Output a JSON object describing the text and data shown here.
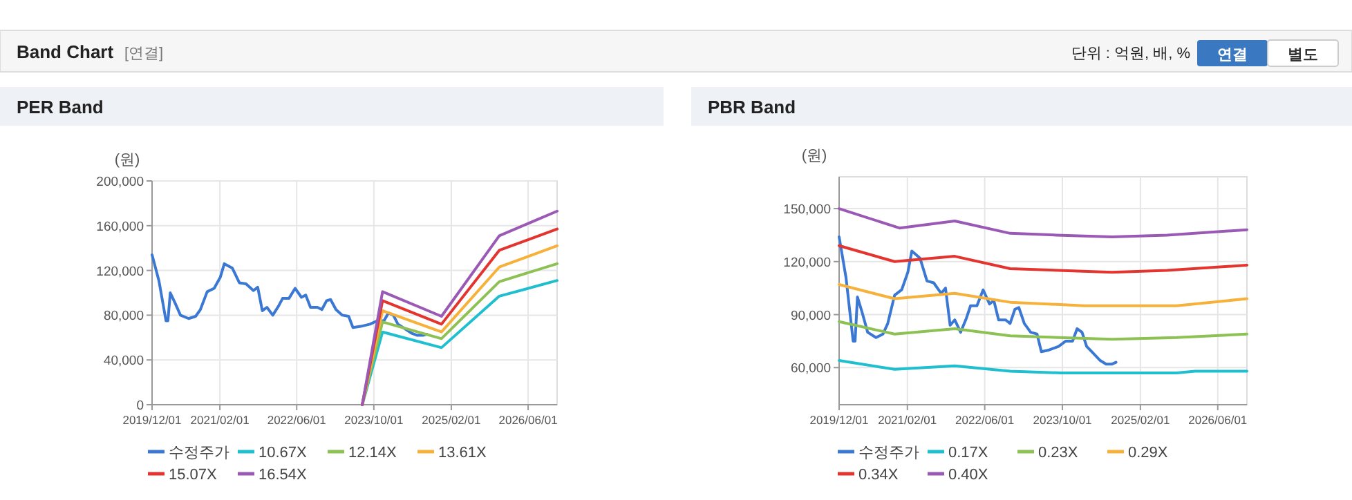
{
  "chart_data": [
    {
      "type": "other",
      "title": "Band Chart",
      "subtitle": "[연결]",
      "annotations": [
        "단위 : 억원, 배, %",
        "연결",
        "별도"
      ]
    },
    {
      "type": "line",
      "title": "PER Band",
      "ylabel": "(원)",
      "xlim": [
        "2019-12-01",
        "2026-12-01"
      ],
      "ylim": [
        0,
        200000
      ],
      "grid": true,
      "legend": "bottom",
      "xticks": [
        {
          "value": "2019-12-01",
          "label": "2019/12/01"
        },
        {
          "value": "2021-02-01",
          "label": "2021/02/01"
        },
        {
          "value": "2022-06-01",
          "label": "2022/06/01"
        },
        {
          "value": "2023-10-01",
          "label": "2023/10/01"
        },
        {
          "value": "2025-02-01",
          "label": "2025/02/01"
        },
        {
          "value": "2026-06-01",
          "label": "2026/06/01"
        }
      ],
      "yticks": [
        {
          "value": 0,
          "label": "0"
        },
        {
          "value": 40000,
          "label": "40,000"
        },
        {
          "value": 80000,
          "label": "80,000"
        },
        {
          "value": 120000,
          "label": "120,000"
        },
        {
          "value": 160000,
          "label": "160,000"
        },
        {
          "value": 200000,
          "label": "200,000"
        }
      ],
      "series": [
        {
          "name": "수정주가",
          "color": "#3a78d4",
          "x": [
            "2019-12-01",
            "2020-01-13",
            "2020-02-27",
            "2020-03-10",
            "2020-03-25",
            "2020-04-24",
            "2020-05-28",
            "2020-07-19",
            "2020-09-01",
            "2020-10-01",
            "2020-11-13",
            "2020-12-27",
            "2021-02-04",
            "2021-03-01",
            "2021-04-21",
            "2021-06-04",
            "2021-07-16",
            "2021-09-01",
            "2021-09-28",
            "2021-10-27",
            "2021-11-25",
            "2022-01-01",
            "2022-02-06",
            "2022-03-04",
            "2022-04-13",
            "2022-05-22",
            "2022-07-01",
            "2022-07-28",
            "2022-08-27",
            "2022-10-10",
            "2022-11-07",
            "2022-12-07",
            "2023-01-01",
            "2023-02-04",
            "2023-03-16",
            "2023-04-25",
            "2023-05-22",
            "2023-07-10",
            "2023-09-07",
            "2023-10-22",
            "2023-12-04",
            "2024-01-01",
            "2024-02-01",
            "2024-03-01",
            "2024-04-13",
            "2024-05-25",
            "2024-07-01",
            "2024-08-07",
            "2024-09-01"
          ],
          "values": [
            134000,
            111000,
            75000,
            75000,
            100000,
            91000,
            80000,
            77000,
            79000,
            85000,
            101000,
            104000,
            114000,
            126000,
            122000,
            109000,
            108000,
            102000,
            105000,
            84000,
            87000,
            80000,
            88000,
            95000,
            95000,
            104000,
            96000,
            98000,
            87000,
            87000,
            85000,
            93000,
            94000,
            85000,
            80000,
            79000,
            69000,
            70000,
            72000,
            75000,
            75000,
            82000,
            80000,
            72000,
            68000,
            64000,
            62000,
            62000,
            63000
          ]
        },
        {
          "name": "10.67X",
          "color": "#1fbfcf",
          "x": [
            "2023-07-20",
            "2023-11-25",
            "2024-12-01",
            "2025-12-01",
            "2026-12-01"
          ],
          "values": [
            0,
            65000,
            51000,
            97000,
            111000
          ]
        },
        {
          "name": "12.14X",
          "color": "#8dc153",
          "x": [
            "2023-07-20",
            "2023-11-25",
            "2024-12-01",
            "2025-12-01",
            "2026-12-01"
          ],
          "values": [
            0,
            74000,
            59000,
            110000,
            126000
          ]
        },
        {
          "name": "13.61X",
          "color": "#f6b13a",
          "x": [
            "2023-07-20",
            "2023-11-25",
            "2024-12-01",
            "2025-12-01",
            "2026-12-01"
          ],
          "values": [
            0,
            84000,
            65000,
            123000,
            142000
          ]
        },
        {
          "name": "15.07X",
          "color": "#e3342f",
          "x": [
            "2023-07-20",
            "2023-11-25",
            "2024-12-01",
            "2025-12-01",
            "2026-12-01"
          ],
          "values": [
            0,
            93000,
            72000,
            138000,
            157000
          ]
        },
        {
          "name": "16.54X",
          "color": "#9b59b6",
          "x": [
            "2023-07-20",
            "2023-11-25",
            "2024-12-01",
            "2025-12-01",
            "2026-12-01"
          ],
          "values": [
            0,
            101000,
            79000,
            151000,
            173000
          ]
        }
      ]
    },
    {
      "type": "line",
      "title": "PBR Band",
      "ylabel": "(원)",
      "xlim": [
        "2019-12-01",
        "2026-12-01"
      ],
      "ylim": [
        39000,
        168000
      ],
      "grid": true,
      "legend": "bottom",
      "xticks": [
        {
          "value": "2019-12-01",
          "label": "2019/12/01"
        },
        {
          "value": "2021-02-01",
          "label": "2021/02/01"
        },
        {
          "value": "2022-06-01",
          "label": "2022/06/01"
        },
        {
          "value": "2023-10-01",
          "label": "2023/10/01"
        },
        {
          "value": "2025-02-01",
          "label": "2025/02/01"
        },
        {
          "value": "2026-06-01",
          "label": "2026/06/01"
        }
      ],
      "yticks": [
        {
          "value": 60000,
          "label": "60,000"
        },
        {
          "value": 90000,
          "label": "90,000"
        },
        {
          "value": 120000,
          "label": "120,000"
        },
        {
          "value": 150000,
          "label": "150,000"
        }
      ],
      "series": [
        {
          "name": "수정주가",
          "color": "#3a78d4",
          "x": [
            "2019-12-01",
            "2020-01-13",
            "2020-02-27",
            "2020-03-10",
            "2020-03-25",
            "2020-04-24",
            "2020-05-28",
            "2020-07-19",
            "2020-09-01",
            "2020-10-01",
            "2020-11-13",
            "2020-12-27",
            "2021-02-04",
            "2021-03-01",
            "2021-04-21",
            "2021-06-04",
            "2021-07-16",
            "2021-09-01",
            "2021-09-28",
            "2021-10-27",
            "2021-11-25",
            "2022-01-01",
            "2022-02-06",
            "2022-03-04",
            "2022-04-13",
            "2022-05-22",
            "2022-07-01",
            "2022-07-28",
            "2022-08-27",
            "2022-10-10",
            "2022-11-07",
            "2022-12-07",
            "2023-01-01",
            "2023-02-04",
            "2023-03-16",
            "2023-04-25",
            "2023-05-22",
            "2023-07-10",
            "2023-09-07",
            "2023-10-22",
            "2023-12-04",
            "2024-01-01",
            "2024-02-01",
            "2024-03-01",
            "2024-04-13",
            "2024-05-25",
            "2024-07-01",
            "2024-08-07",
            "2024-09-01"
          ],
          "values": [
            134000,
            111000,
            75000,
            75000,
            100000,
            91000,
            80000,
            77000,
            79000,
            85000,
            101000,
            104000,
            114000,
            126000,
            122000,
            109000,
            108000,
            102000,
            105000,
            84000,
            87000,
            80000,
            88000,
            95000,
            95000,
            104000,
            96000,
            98000,
            87000,
            87000,
            85000,
            93000,
            94000,
            85000,
            80000,
            79000,
            69000,
            70000,
            72000,
            75000,
            75000,
            82000,
            80000,
            72000,
            68000,
            64000,
            62000,
            62000,
            63000
          ]
        },
        {
          "name": "0.17X",
          "color": "#1fbfcf",
          "x": [
            "2019-12-01",
            "2020-11-13",
            "2021-11-25",
            "2022-11-07",
            "2023-09-22",
            "2025-09-16",
            "2026-01-10",
            "2026-12-01"
          ],
          "values": [
            64000,
            59000,
            61000,
            58000,
            57000,
            57000,
            58000,
            58000
          ]
        },
        {
          "name": "0.23X",
          "color": "#8dc153",
          "x": [
            "2019-12-01",
            "2020-11-13",
            "2021-11-25",
            "2022-11-07",
            "2024-08-07",
            "2025-09-16",
            "2026-12-01"
          ],
          "values": [
            86000,
            79000,
            82000,
            78000,
            76000,
            77000,
            79000
          ]
        },
        {
          "name": "0.29X",
          "color": "#f6b13a",
          "x": [
            "2019-12-01",
            "2020-11-13",
            "2021-11-25",
            "2022-11-07",
            "2024-02-15",
            "2025-09-16",
            "2026-12-01"
          ],
          "values": [
            107000,
            99000,
            102000,
            97000,
            95000,
            95000,
            99000
          ]
        },
        {
          "name": "0.34X",
          "color": "#e3342f",
          "x": [
            "2019-12-01",
            "2020-11-13",
            "2021-11-25",
            "2022-11-07",
            "2024-08-07",
            "2025-07-19",
            "2026-12-01"
          ],
          "values": [
            129000,
            120000,
            123000,
            116000,
            114000,
            115000,
            118000
          ]
        },
        {
          "name": "0.40X",
          "color": "#9b59b6",
          "x": [
            "2019-12-01",
            "2020-12-13",
            "2021-11-25",
            "2022-11-07",
            "2023-08-25",
            "2024-08-07",
            "2025-07-19",
            "2026-12-01"
          ],
          "values": [
            150000,
            139000,
            143000,
            136000,
            135000,
            134000,
            135000,
            138000
          ]
        }
      ]
    }
  ]
}
